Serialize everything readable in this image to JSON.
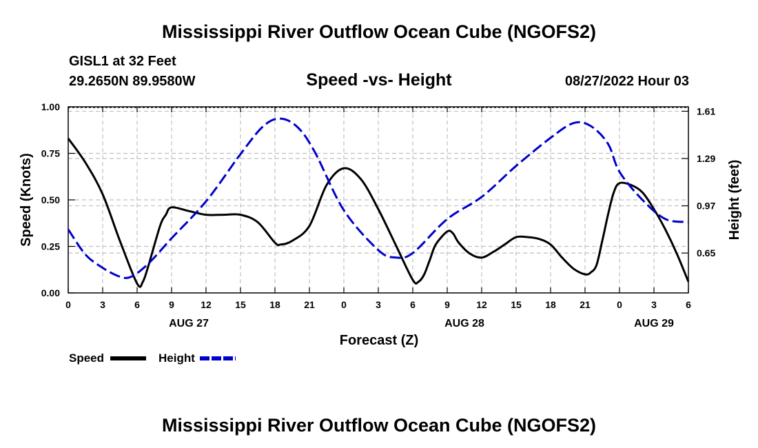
{
  "title": "Mississippi River Outflow Ocean Cube (NGOFS2)",
  "station": "GISL1 at 32 Feet",
  "location": "29.2650N  89.9580W",
  "timestamp": "08/27/2022 Hour 03",
  "footer_title": "Mississippi River Outflow Ocean Cube (NGOFS2)",
  "chart_data": {
    "type": "line",
    "title": "Speed -vs- Height",
    "xlabel": "Forecast (Z)",
    "ylabel": "Speed (Knots)",
    "y2label": "Height (feet)",
    "x_range_hours": [
      0,
      54
    ],
    "ylim": [
      0,
      1
    ],
    "y2lim": [
      0.38,
      1.64
    ],
    "x_tick_labels": [
      "0",
      "3",
      "6",
      "9",
      "12",
      "15",
      "18",
      "21",
      "0",
      "3",
      "6",
      "9",
      "12",
      "15",
      "18",
      "21",
      "0",
      "3",
      "6"
    ],
    "date_labels": [
      {
        "hour": 10.5,
        "label": "AUG 27"
      },
      {
        "hour": 34.5,
        "label": "AUG 28"
      },
      {
        "hour": 51,
        "label": "AUG 29"
      }
    ],
    "y_ticks": [
      0,
      0.25,
      0.5,
      0.75,
      1.0
    ],
    "y_tick_labels": [
      "0.00",
      "0.25",
      "0.50",
      "0.75",
      "1.00"
    ],
    "y2_ticks": [
      0.65,
      0.97,
      1.29,
      1.61
    ],
    "y2_tick_labels": [
      "0.65",
      "0.97",
      "1.29",
      "1.61"
    ],
    "grid": true,
    "legend_position": "bottom-left",
    "series": [
      {
        "name": "Speed",
        "axis": "left",
        "color": "#000000",
        "style": "solid",
        "x": [
          0,
          1.5,
          3,
          4.5,
          6,
          6.5,
          7,
          8,
          8.5,
          9,
          10.5,
          12,
          13.5,
          15,
          16.5,
          18,
          18.5,
          19.5,
          21,
          22.5,
          24,
          25.5,
          27,
          28.5,
          30,
          30.5,
          31,
          31.5,
          32,
          33,
          33.5,
          34,
          35,
          36,
          37,
          38,
          39,
          40,
          41,
          42,
          43,
          44,
          45,
          45.5,
          46,
          46.5,
          47,
          47.5,
          48,
          49,
          50,
          51,
          52,
          53,
          54
        ],
        "values": [
          0.83,
          0.7,
          0.53,
          0.28,
          0.05,
          0.06,
          0.15,
          0.36,
          0.42,
          0.46,
          0.44,
          0.42,
          0.42,
          0.42,
          0.38,
          0.27,
          0.26,
          0.28,
          0.36,
          0.58,
          0.67,
          0.61,
          0.45,
          0.26,
          0.07,
          0.06,
          0.1,
          0.18,
          0.26,
          0.33,
          0.32,
          0.27,
          0.21,
          0.19,
          0.22,
          0.26,
          0.3,
          0.3,
          0.29,
          0.26,
          0.19,
          0.13,
          0.1,
          0.11,
          0.15,
          0.28,
          0.42,
          0.54,
          0.59,
          0.58,
          0.54,
          0.45,
          0.34,
          0.21,
          0.06
        ]
      },
      {
        "name": "Height",
        "axis": "right",
        "color": "#0000cc",
        "style": "dashed",
        "x": [
          0,
          1.5,
          3,
          4.5,
          5.5,
          7,
          9,
          12,
          15,
          17,
          18.5,
          20,
          21.5,
          24,
          27,
          28.5,
          30,
          33,
          36,
          39,
          42,
          44,
          45.5,
          47,
          48,
          50,
          52,
          54
        ],
        "values": [
          0.81,
          0.64,
          0.55,
          0.49,
          0.49,
          0.58,
          0.75,
          1.0,
          1.32,
          1.51,
          1.56,
          1.5,
          1.33,
          0.94,
          0.67,
          0.62,
          0.65,
          0.88,
          1.03,
          1.24,
          1.43,
          1.53,
          1.51,
          1.39,
          1.2,
          1.01,
          0.88,
          0.86
        ]
      }
    ]
  }
}
